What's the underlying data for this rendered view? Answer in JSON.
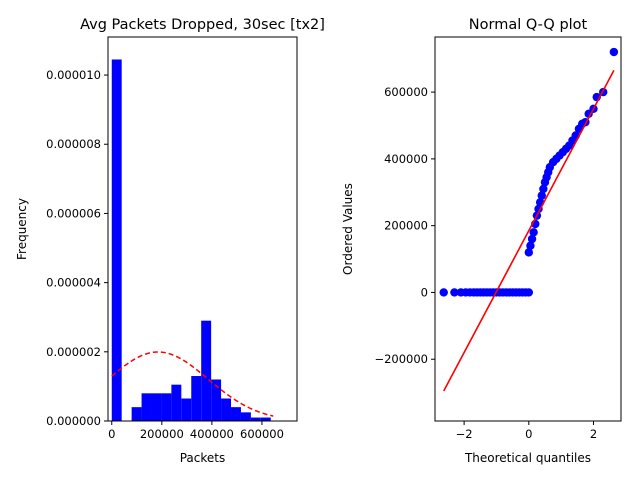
{
  "chart_data": [
    {
      "type": "bar",
      "title": "Avg Packets Dropped, 30sec [tx2]",
      "xlabel": "Packets",
      "ylabel": "Frequency",
      "xlim": [
        -15000,
        740000
      ],
      "ylim": [
        0,
        1.11e-05
      ],
      "x_ticks": [
        0,
        200000,
        400000,
        600000
      ],
      "x_tick_labels": [
        "0",
        "200000",
        "400000",
        "600000"
      ],
      "y_ticks": [
        0,
        2e-06,
        4e-06,
        6e-06,
        8e-06,
        1e-05
      ],
      "y_tick_labels": [
        "0.000000",
        "0.000002",
        "0.000004",
        "0.000006",
        "0.000008",
        "0.000010"
      ],
      "bar_color": "#0000ff",
      "bins": [
        {
          "start": 0,
          "end": 39700,
          "value": 1.045e-05
        },
        {
          "start": 39700,
          "end": 79400,
          "value": 0
        },
        {
          "start": 79400,
          "end": 119100,
          "value": 4e-07
        },
        {
          "start": 119100,
          "end": 158800,
          "value": 8e-07
        },
        {
          "start": 158800,
          "end": 198500,
          "value": 8e-07
        },
        {
          "start": 198500,
          "end": 238200,
          "value": 8e-07
        },
        {
          "start": 238200,
          "end": 277900,
          "value": 1.05e-06
        },
        {
          "start": 277900,
          "end": 317600,
          "value": 6.5e-07
        },
        {
          "start": 317600,
          "end": 357300,
          "value": 1.3e-06
        },
        {
          "start": 357300,
          "end": 397000,
          "value": 2.9e-06
        },
        {
          "start": 397000,
          "end": 436700,
          "value": 1.2e-06
        },
        {
          "start": 436700,
          "end": 476400,
          "value": 6.5e-07
        },
        {
          "start": 476400,
          "end": 516100,
          "value": 4e-07
        },
        {
          "start": 516100,
          "end": 555800,
          "value": 2.5e-07
        },
        {
          "start": 555800,
          "end": 595500,
          "value": 1e-07
        },
        {
          "start": 595500,
          "end": 635200,
          "value": 1e-07
        }
      ],
      "normal_fit": {
        "mean": 185000,
        "std": 200000,
        "color": "#ff0000",
        "style": "dashed"
      }
    },
    {
      "type": "scatter",
      "title": "Normal Q-Q plot",
      "xlabel": "Theoretical quantiles",
      "ylabel": "Ordered Values",
      "xlim": [
        -2.9,
        2.85
      ],
      "ylim": [
        -385000,
        765000
      ],
      "x_ticks": [
        -2,
        0,
        2
      ],
      "x_tick_labels": [
        "−2",
        "0",
        "2"
      ],
      "y_ticks": [
        -200000,
        0,
        200000,
        400000,
        600000
      ],
      "y_tick_labels": [
        "−200000",
        "0",
        "200000",
        "400000",
        "600000"
      ],
      "point_color": "#0000ff",
      "line_color": "#ff0000",
      "fit_line": {
        "x": [
          -2.63,
          2.63
        ],
        "y": [
          -295000,
          665000
        ]
      },
      "points": [
        [
          -2.63,
          0
        ],
        [
          -2.3,
          0
        ],
        [
          -2.1,
          0
        ],
        [
          -1.95,
          0
        ],
        [
          -1.82,
          0
        ],
        [
          -1.7,
          0
        ],
        [
          -1.6,
          0
        ],
        [
          -1.5,
          0
        ],
        [
          -1.4,
          0
        ],
        [
          -1.3,
          0
        ],
        [
          -1.2,
          0
        ],
        [
          -1.1,
          0
        ],
        [
          -1.0,
          0
        ],
        [
          -0.9,
          0
        ],
        [
          -0.8,
          0
        ],
        [
          -0.7,
          0
        ],
        [
          -0.6,
          0
        ],
        [
          -0.5,
          0
        ],
        [
          -0.4,
          0
        ],
        [
          -0.3,
          0
        ],
        [
          -0.2,
          0
        ],
        [
          -0.1,
          0
        ],
        [
          0.0,
          0
        ],
        [
          0.0,
          120000
        ],
        [
          0.05,
          140000
        ],
        [
          0.1,
          160000
        ],
        [
          0.15,
          180000
        ],
        [
          0.2,
          205000
        ],
        [
          0.25,
          230000
        ],
        [
          0.3,
          250000
        ],
        [
          0.35,
          270000
        ],
        [
          0.4,
          290000
        ],
        [
          0.45,
          310000
        ],
        [
          0.5,
          330000
        ],
        [
          0.55,
          345000
        ],
        [
          0.6,
          360000
        ],
        [
          0.65,
          375000
        ],
        [
          0.75,
          390000
        ],
        [
          0.85,
          400000
        ],
        [
          0.95,
          410000
        ],
        [
          1.05,
          420000
        ],
        [
          1.15,
          430000
        ],
        [
          1.25,
          440000
        ],
        [
          1.35,
          455000
        ],
        [
          1.45,
          470000
        ],
        [
          1.55,
          490000
        ],
        [
          1.65,
          505000
        ],
        [
          1.75,
          510000
        ],
        [
          1.85,
          535000
        ],
        [
          2.0,
          550000
        ],
        [
          2.1,
          585000
        ],
        [
          2.3,
          600000
        ],
        [
          2.63,
          720000
        ]
      ]
    }
  ]
}
